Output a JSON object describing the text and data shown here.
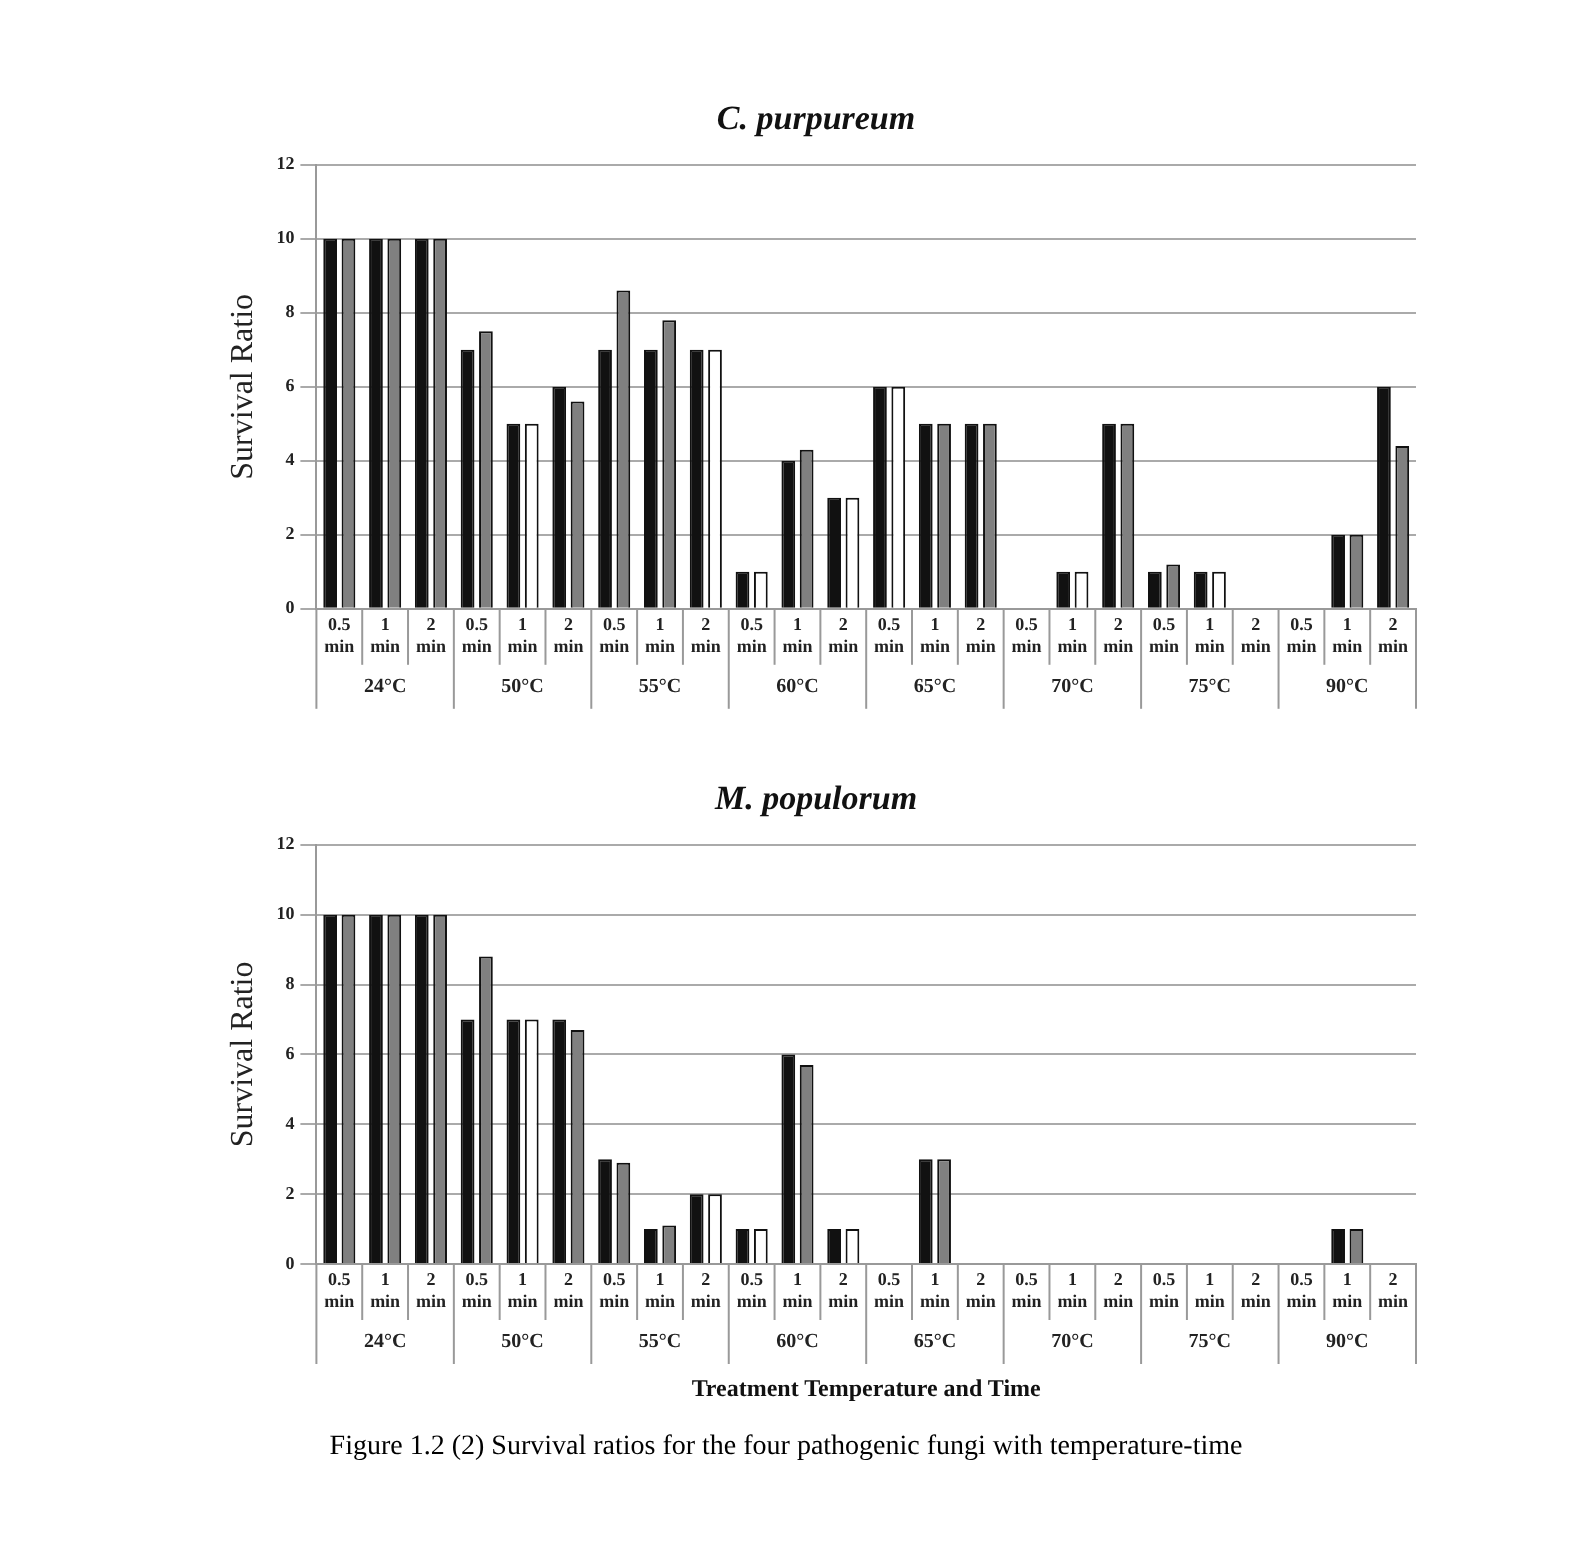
{
  "chart_data": [
    {
      "type": "bar",
      "title": "C. purpureum",
      "ylabel": "Survival Ratio",
      "categories": [
        "0.5 min",
        "1 min",
        "2 min",
        "0.5 min",
        "1 min",
        "2 min",
        "0.5 min",
        "1 min",
        "2 min",
        "0.5 min",
        "1 min",
        "2 min",
        "0.5 min",
        "1 min",
        "2 min",
        "0.5 min",
        "1 min",
        "2 min",
        "0.5 min",
        "1 min",
        "2 min",
        "0.5 min",
        "1 min",
        "2 min"
      ],
      "series": [
        {
          "color": "#111111",
          "values": [
            10,
            10,
            10,
            7,
            5,
            6,
            7,
            7,
            7,
            1,
            4,
            3,
            6,
            5,
            5,
            0,
            1,
            5,
            1,
            1,
            0,
            0,
            2,
            6
          ]
        },
        {
          "colors": [
            "#808080",
            "#808080",
            "#808080",
            "#808080",
            "#ffffff",
            "#808080",
            "#808080",
            "#808080",
            "#ffffff",
            "#ffffff",
            "#808080",
            "#ffffff",
            "#ffffff",
            "#808080",
            "#808080",
            "#808080",
            "#ffffff",
            "#808080",
            "#808080",
            "#ffffff",
            "#808080",
            "#808080",
            "#808080",
            "#808080"
          ],
          "values": [
            10,
            10,
            10,
            7.5,
            5,
            5.6,
            8.6,
            7.8,
            7,
            1,
            4.3,
            3,
            6,
            5,
            5,
            0,
            1,
            5,
            1.2,
            1,
            0,
            0,
            2,
            4.4
          ]
        }
      ],
      "ylim": [
        0,
        12
      ],
      "yticks": [
        0,
        2,
        4,
        6,
        8,
        10,
        12
      ],
      "grid": "y",
      "annotations": [
        "24°C",
        "50°C",
        "55°C",
        "60°C",
        "65°C",
        "70°C",
        "75°C",
        "90°C"
      ]
    },
    {
      "type": "bar",
      "title": "M. populorum",
      "ylabel": "Survival Ratio",
      "xlabel": "Treatment Temperature and Time",
      "categories": [
        "0.5 min",
        "1 min",
        "2 min",
        "0.5 min",
        "1 min",
        "2 min",
        "0.5 min",
        "1 min",
        "2 min",
        "0.5 min",
        "1 min",
        "2 min",
        "0.5 min",
        "1 min",
        "2 min",
        "0.5 min",
        "1 min",
        "2 min",
        "0.5 min",
        "1 min",
        "2 min",
        "0.5 min",
        "1 min",
        "2 min"
      ],
      "series": [
        {
          "color": "#111111",
          "values": [
            10,
            10,
            10,
            7,
            7,
            7,
            3,
            1,
            2,
            1,
            6,
            1,
            0,
            3,
            0,
            0,
            0,
            0,
            0,
            0,
            0,
            0,
            1,
            0
          ]
        },
        {
          "colors": [
            "#808080",
            "#808080",
            "#808080",
            "#808080",
            "#ffffff",
            "#808080",
            "#808080",
            "#808080",
            "#ffffff",
            "#ffffff",
            "#808080",
            "#ffffff",
            "#808080",
            "#808080",
            "#808080",
            "#808080",
            "#808080",
            "#808080",
            "#808080",
            "#808080",
            "#808080",
            "#808080",
            "#808080",
            "#808080"
          ],
          "values": [
            10,
            10,
            10,
            8.8,
            7,
            6.7,
            2.9,
            1.1,
            2,
            1,
            5.7,
            1,
            0,
            3,
            0,
            0,
            0,
            0,
            0,
            0,
            0,
            0,
            1,
            0
          ]
        }
      ],
      "ylim": [
        0,
        12
      ],
      "yticks": [
        0,
        2,
        4,
        6,
        8,
        10,
        12
      ],
      "grid": "y",
      "annotations": [
        "24°C",
        "50°C",
        "55°C",
        "60°C",
        "65°C",
        "70°C",
        "75°C",
        "90°C",
        "Figure 1.2 (2) Survival ratios for the four pathogenic fungi with temperature-time"
      ]
    }
  ]
}
